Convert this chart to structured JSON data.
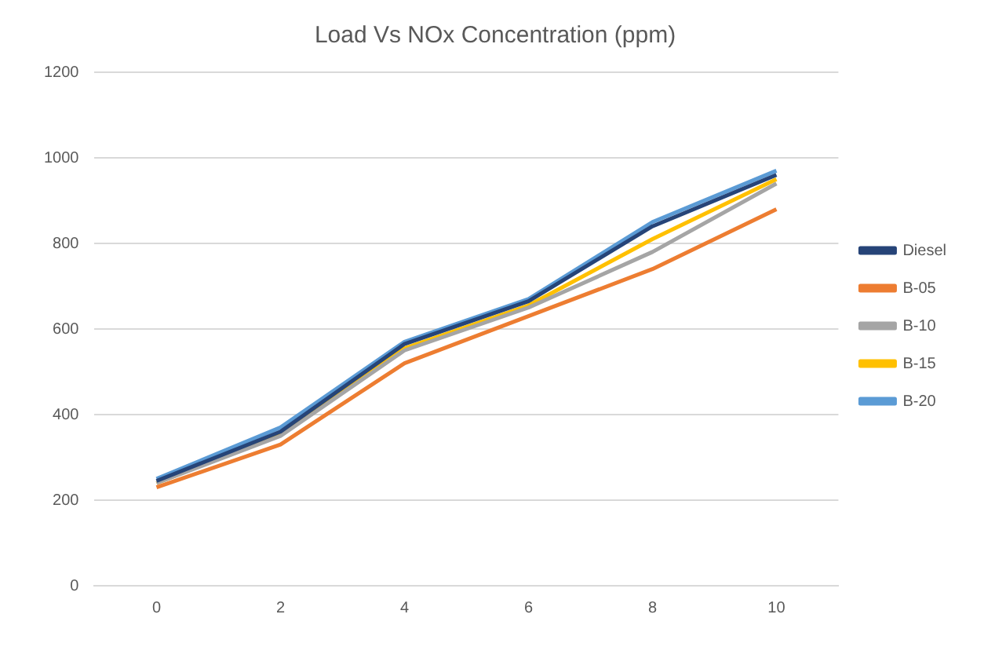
{
  "chart_data": {
    "type": "line",
    "title": "Load Vs NOx Concentration (ppm)",
    "categories": [
      "0",
      "2",
      "4",
      "6",
      "8",
      "10"
    ],
    "series": [
      {
        "name": "Diesel",
        "color": "#264478",
        "values": [
          245,
          360,
          565,
          665,
          840,
          960
        ]
      },
      {
        "name": "B-05",
        "color": "#ed7d31",
        "values": [
          230,
          330,
          520,
          630,
          740,
          880
        ]
      },
      {
        "name": "B-10",
        "color": "#a5a5a5",
        "values": [
          240,
          350,
          550,
          650,
          780,
          940
        ]
      },
      {
        "name": "B-15",
        "color": "#ffc000",
        "values": [
          240,
          355,
          555,
          655,
          810,
          950
        ]
      },
      {
        "name": "B-20",
        "color": "#5b9bd5",
        "values": [
          250,
          370,
          570,
          670,
          850,
          970
        ]
      }
    ],
    "ylim": [
      0,
      1200
    ],
    "yticks": [
      0,
      200,
      400,
      600,
      800,
      1000,
      1200
    ],
    "grid": "y",
    "legend": "right",
    "marker": "none",
    "line_style": "solid"
  }
}
